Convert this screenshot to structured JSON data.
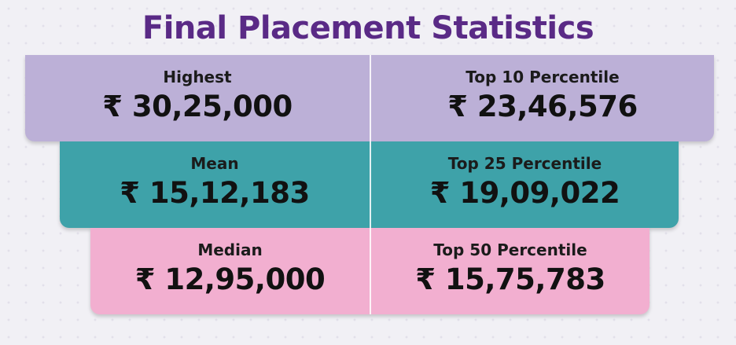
{
  "title": "Final Placement Statistics",
  "rows": [
    {
      "left": {
        "label": "Highest",
        "value": "₹ 30,25,000"
      },
      "right": {
        "label": "Top 10 Percentile",
        "value": "₹ 23,46,576"
      },
      "color": "#bcb0d7"
    },
    {
      "left": {
        "label": "Mean",
        "value": "₹ 15,12,183"
      },
      "right": {
        "label": "Top 25 Percentile",
        "value": "₹ 19,09,022"
      },
      "color": "#3ea2a9"
    },
    {
      "left": {
        "label": "Median",
        "value": "₹ 12,95,000"
      },
      "right": {
        "label": "Top 50 Percentile",
        "value": "₹ 15,75,783"
      },
      "color": "#f2afd0"
    }
  ],
  "colors": {
    "title": "#5a2a86",
    "background": "#f1f0f5",
    "text": "#111111"
  }
}
